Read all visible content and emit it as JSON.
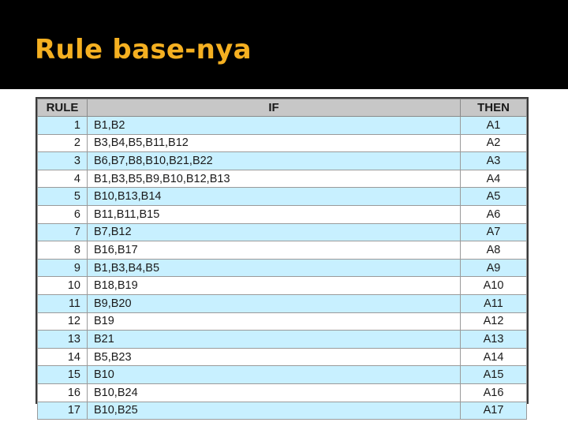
{
  "slide": {
    "title": "Rule base-nya"
  },
  "table": {
    "headers": {
      "rule": "RULE",
      "if": "IF",
      "then": "THEN"
    },
    "rows": [
      {
        "rule": "1",
        "if": "B1,B2",
        "then": "A1"
      },
      {
        "rule": "2",
        "if": "B3,B4,B5,B11,B12",
        "then": "A2"
      },
      {
        "rule": "3",
        "if": "B6,B7,B8,B10,B21,B22",
        "then": "A3"
      },
      {
        "rule": "4",
        "if": "B1,B3,B5,B9,B10,B12,B13",
        "then": "A4"
      },
      {
        "rule": "5",
        "if": "B10,B13,B14",
        "then": "A5"
      },
      {
        "rule": "6",
        "if": "B11,B11,B15",
        "then": "A6"
      },
      {
        "rule": "7",
        "if": "B7,B12",
        "then": "A7"
      },
      {
        "rule": "8",
        "if": "B16,B17",
        "then": "A8"
      },
      {
        "rule": "9",
        "if": "B1,B3,B4,B5",
        "then": "A9"
      },
      {
        "rule": "10",
        "if": "B18,B19",
        "then": "A10"
      },
      {
        "rule": "11",
        "if": "B9,B20",
        "then": "A11"
      },
      {
        "rule": "12",
        "if": "B19",
        "then": "A12"
      },
      {
        "rule": "13",
        "if": "B21",
        "then": "A13"
      },
      {
        "rule": "14",
        "if": "B5,B23",
        "then": "A14"
      },
      {
        "rule": "15",
        "if": "B10",
        "then": "A15"
      },
      {
        "rule": "16",
        "if": "B10,B24",
        "then": "A16"
      },
      {
        "rule": "17",
        "if": "B10,B25",
        "then": "A17"
      }
    ]
  },
  "colors": {
    "title_bar": "#000000",
    "title_text": "#f5b021",
    "header_bg": "#c7c7c7",
    "row_highlight": "#c8f0ff",
    "row_plain": "#ffffff"
  }
}
